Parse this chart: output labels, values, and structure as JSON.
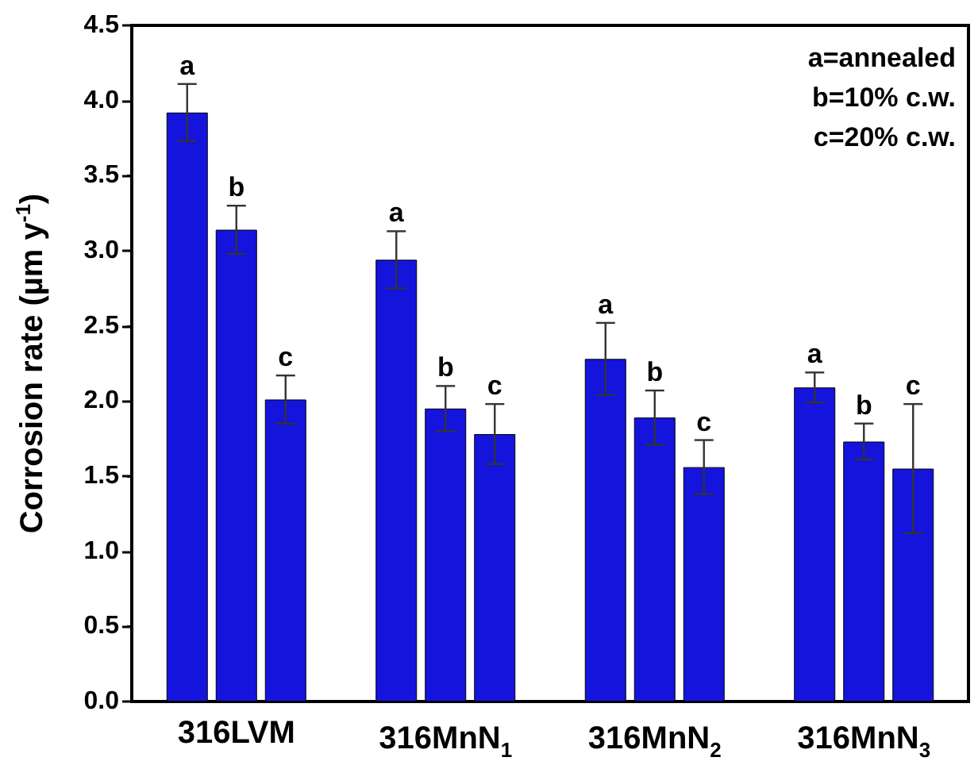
{
  "chart_data": {
    "type": "bar",
    "ylabel": "Corrosion rate (µm y$^{-1}$)",
    "categories": [
      "316LVM",
      "316MnN$_{1}$",
      "316MnN$_{2}$",
      "316MnN$_{3}$"
    ],
    "series": [
      {
        "color": "#1414dc",
        "values": [
          3.92,
          2.94,
          2.28,
          2.09
        ],
        "errors": [
          0.19,
          0.19,
          0.24,
          0.1
        ],
        "value_labels": [
          "a",
          "a",
          "a",
          "a"
        ]
      },
      {
        "color": "#1414dc",
        "values": [
          3.14,
          1.95,
          1.89,
          1.73
        ],
        "errors": [
          0.16,
          0.15,
          0.18,
          0.12
        ],
        "value_labels": [
          "b",
          "b",
          "b",
          "b"
        ]
      },
      {
        "color": "#1414dc",
        "values": [
          2.01,
          1.78,
          1.56,
          1.55
        ],
        "errors": [
          0.16,
          0.2,
          0.18,
          0.43
        ],
        "value_labels": [
          "c",
          "c",
          "c",
          "c"
        ]
      }
    ],
    "ylim": [
      0,
      4.5
    ],
    "yticks": [
      {
        "value": 0,
        "label": "0.0"
      },
      {
        "value": 0.5,
        "label": "0.5"
      },
      {
        "value": 1,
        "label": "1.0"
      },
      {
        "value": 1.5,
        "label": "1.5"
      },
      {
        "value": 2,
        "label": "2.0"
      },
      {
        "value": 2.5,
        "label": "2.5"
      },
      {
        "value": 3,
        "label": "3.0"
      },
      {
        "value": 3.5,
        "label": "3.5"
      },
      {
        "value": 4,
        "label": "4.0"
      },
      {
        "value": 4.5,
        "label": "4.5"
      }
    ],
    "annotations": [
      "a=annealed",
      "b=10% c.w.",
      "c=20% c.w."
    ],
    "grid": false
  }
}
